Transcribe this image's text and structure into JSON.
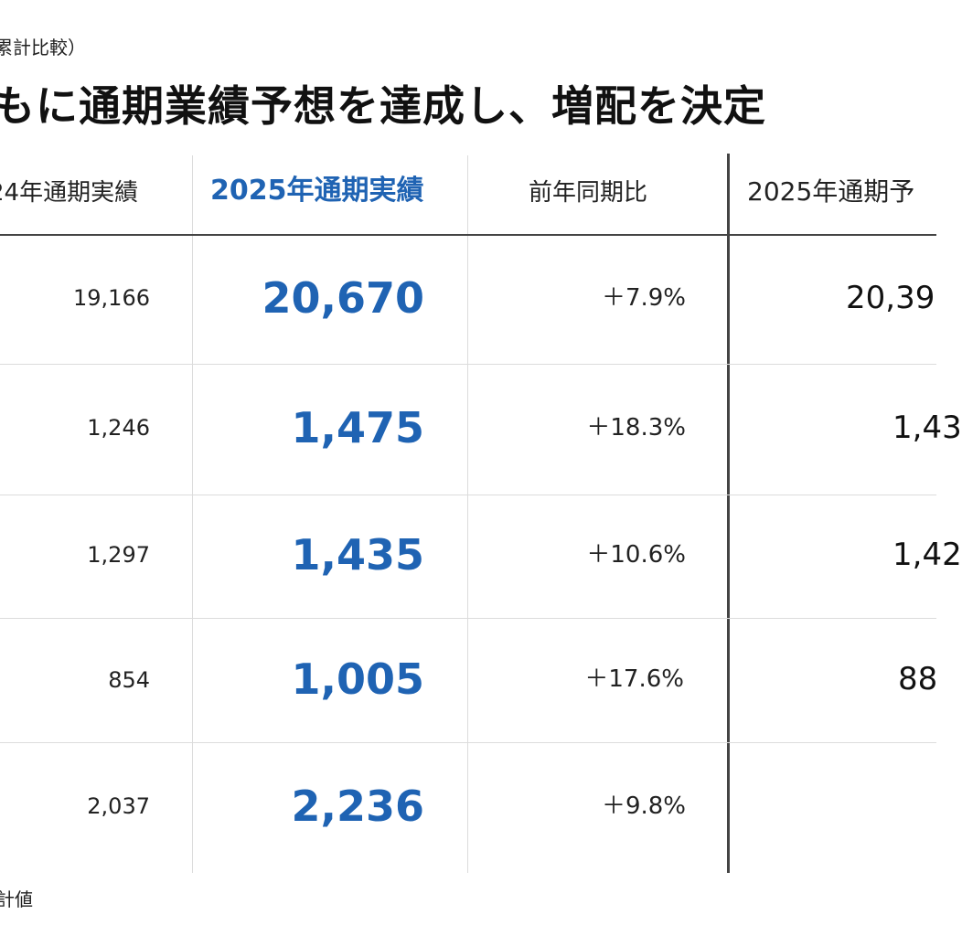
{
  "subtitle": "累計比較）",
  "headline": "もに通期業績予想を達成し、増配を決定",
  "table": {
    "headers": {
      "prev_year": "24年通期実績",
      "current_year": "2025年通期実績",
      "yoy": "前年同期比",
      "forecast": "2025年通期予"
    },
    "rows": [
      {
        "prev": "19,166",
        "current": "20,670",
        "yoy": "＋7.9%",
        "forecast": "20,39"
      },
      {
        "prev": "1,246",
        "current": "1,475",
        "yoy": "＋18.3%",
        "forecast": "1,43"
      },
      {
        "prev": "1,297",
        "current": "1,435",
        "yoy": "＋10.6%",
        "forecast": "1,42"
      },
      {
        "prev": "854",
        "current": "1,005",
        "yoy": "＋17.6%",
        "forecast": "88"
      },
      {
        "prev": "2,037",
        "current": "2,236",
        "yoy": "＋9.8%",
        "forecast": ""
      }
    ]
  },
  "footnote": "計値",
  "colors": {
    "accent": "#1f63b3",
    "text": "#111111",
    "grid": "#dcdcdc",
    "divider": "#444444"
  }
}
